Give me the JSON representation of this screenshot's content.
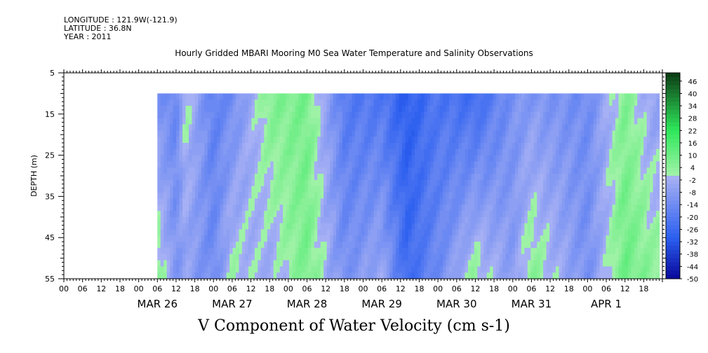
{
  "header": {
    "longitude": "LONGITUDE : 121.9W(-121.9)",
    "latitude": "LATITUDE : 36.8N",
    "year": "YEAR : 2011",
    "title": "Hourly Gridded MBARI Mooring M0 Sea Water Temperature and Salinity Observations"
  },
  "chart_data": {
    "type": "heatmap",
    "title": "Hourly Gridded MBARI Mooring M0 Sea Water Temperature and Salinity Observations",
    "xlabel": "V Component of Water Velocity (cm s-1)",
    "ylabel": "DEPTH (m)",
    "x_range": [
      "2011-03-25T00:00",
      "2011-04-02T00:00"
    ],
    "data_x_range": [
      "2011-03-26T06:00",
      "2011-04-01T23:00"
    ],
    "y_range": [
      5,
      55
    ],
    "data_y_range": [
      10,
      55
    ],
    "y_ticks": [
      5,
      15,
      25,
      35,
      45,
      55
    ],
    "hour_tick_labels": [
      "00",
      "06",
      "12",
      "18"
    ],
    "day_labels": [
      "MAR 26",
      "MAR 27",
      "MAR 28",
      "MAR 29",
      "MAR 30",
      "MAR 31",
      "APR  1"
    ],
    "colorbar": {
      "levels": [
        46,
        40,
        34,
        28,
        22,
        16,
        10,
        4,
        -2,
        -8,
        -14,
        -20,
        -26,
        -32,
        -38,
        -44,
        -50
      ],
      "range": [
        -50,
        50
      ],
      "step": 2
    },
    "colors": {
      "deep_negative": "#08089a",
      "mid_negative": "#2c5ff0",
      "near_zero_negative": "#a6b0f4",
      "near_zero_positive": "#9ef2a6",
      "positive": "#2ee85a",
      "deep_positive": "#0c3a14"
    },
    "field_description_v_cm_s": [
      {
        "time": "2011-03-26T06:00",
        "surface": -12,
        "bottom": 6
      },
      {
        "time": "2011-03-26T12:00",
        "surface": -16,
        "bottom": -10
      },
      {
        "time": "2011-03-26T15:00",
        "surface": 2,
        "bottom": -6
      },
      {
        "time": "2011-03-27T00:00",
        "surface": -18,
        "bottom": -14
      },
      {
        "time": "2011-03-27T06:00",
        "surface": -14,
        "bottom": 2
      },
      {
        "time": "2011-03-27T18:00",
        "surface": 6,
        "bottom": -4
      },
      {
        "time": "2011-03-28T06:00",
        "surface": 8,
        "bottom": 8
      },
      {
        "time": "2011-03-28T18:00",
        "surface": -20,
        "bottom": -12
      },
      {
        "time": "2011-03-29T06:00",
        "surface": -22,
        "bottom": -4
      },
      {
        "time": "2011-03-29T14:00",
        "surface": -30,
        "bottom": -26
      },
      {
        "time": "2011-03-30T00:00",
        "surface": -22,
        "bottom": -14
      },
      {
        "time": "2011-03-30T12:00",
        "surface": -26,
        "bottom": 4
      },
      {
        "time": "2011-03-31T00:00",
        "surface": -12,
        "bottom": -8
      },
      {
        "time": "2011-03-31T06:00",
        "surface": -10,
        "bottom": 6
      },
      {
        "time": "2011-04-01T00:00",
        "surface": -14,
        "bottom": -12
      },
      {
        "time": "2011-04-01T12:00",
        "surface": 6,
        "bottom": 10
      },
      {
        "time": "2011-04-01T21:00",
        "surface": -6,
        "bottom": 4
      }
    ]
  }
}
